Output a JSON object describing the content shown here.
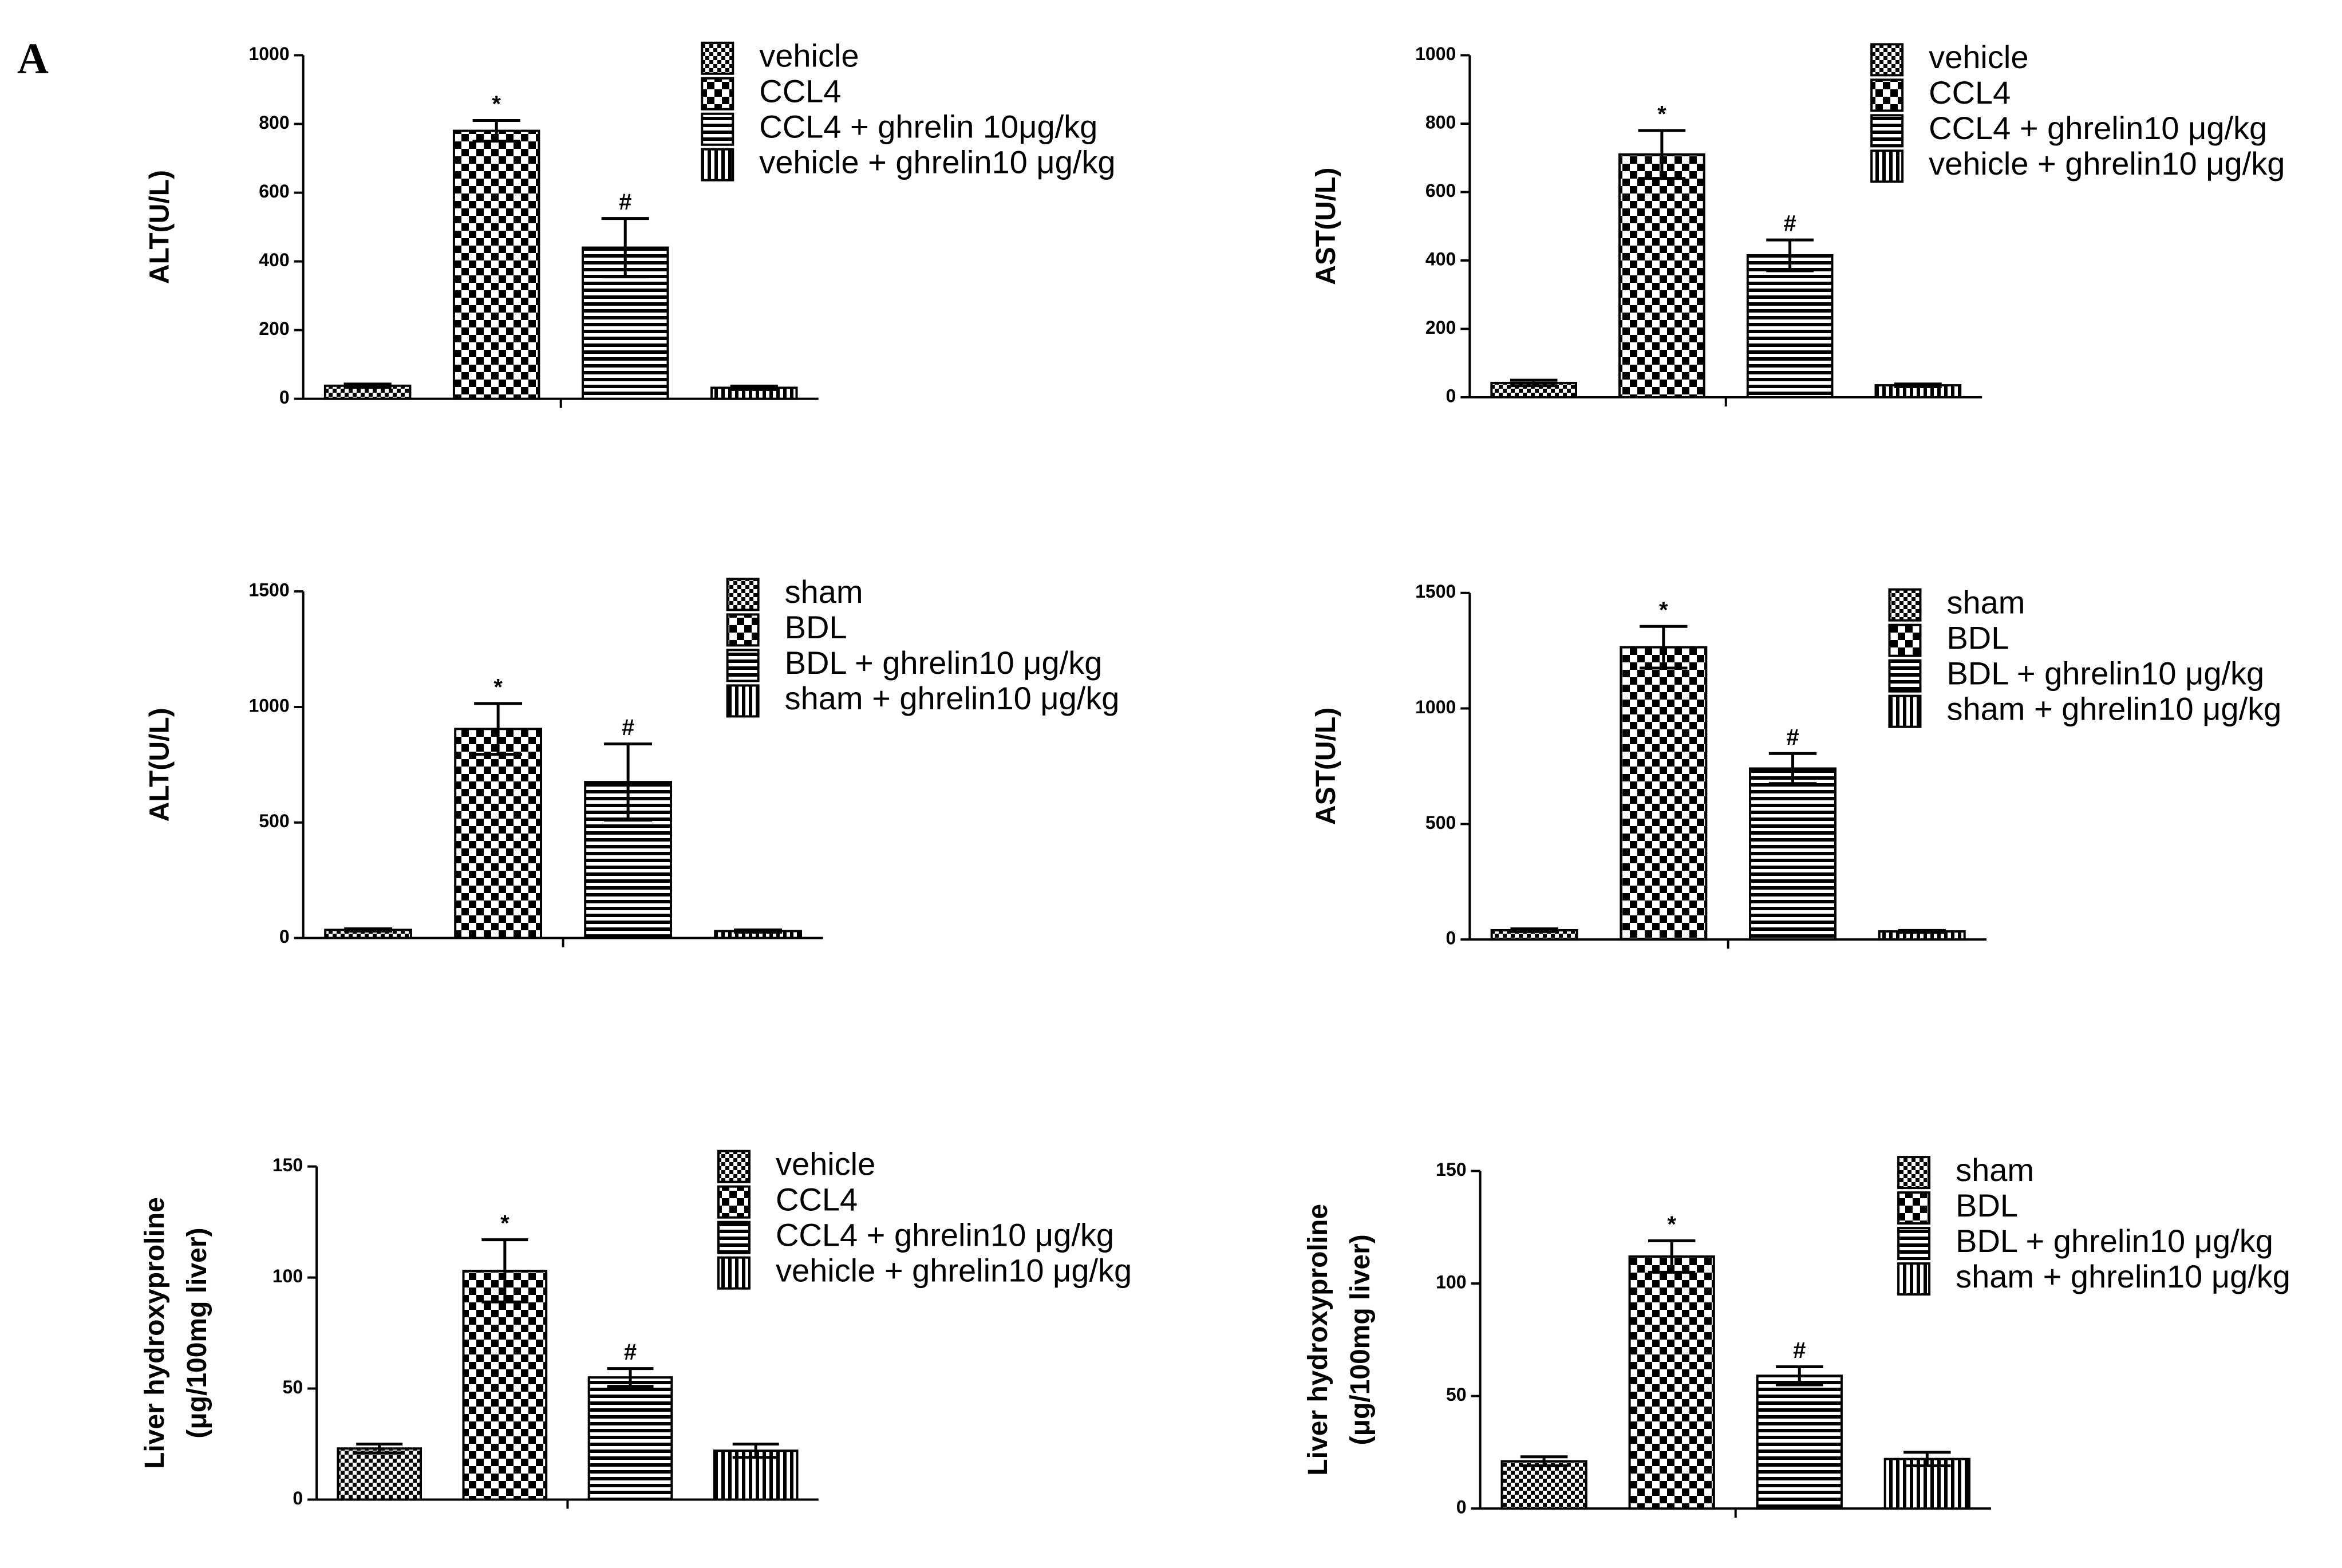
{
  "panel_label": "A",
  "chart_data": [
    {
      "type": "bar",
      "ylabel": "ALT(U/L)",
      "ylim": [
        0,
        1000
      ],
      "yticks": [
        0,
        200,
        400,
        600,
        800,
        1000
      ],
      "series": [
        {
          "name": "vehicle",
          "pattern": "fine-check",
          "values": [
            38
          ],
          "errors": [
            5
          ]
        },
        {
          "name": "CCL4",
          "pattern": "check",
          "values": [
            780
          ],
          "errors": [
            30
          ],
          "annotation": "*"
        },
        {
          "name": "CCL4 + ghrelin 10μg/kg",
          "pattern": "hstripe",
          "values": [
            440
          ],
          "errors": [
            85
          ],
          "annotation": "#"
        },
        {
          "name": "vehicle + ghrelin10 μg/kg",
          "pattern": "vstripe",
          "values": [
            32
          ],
          "errors": [
            5
          ]
        }
      ]
    },
    {
      "type": "bar",
      "ylabel": "AST(U/L)",
      "ylim": [
        0,
        1000
      ],
      "yticks": [
        0,
        200,
        400,
        600,
        800,
        1000
      ],
      "series": [
        {
          "name": "vehicle",
          "pattern": "fine-check",
          "values": [
            42
          ],
          "errors": [
            8
          ]
        },
        {
          "name": "CCL4",
          "pattern": "check",
          "values": [
            710
          ],
          "errors": [
            70
          ],
          "annotation": "*"
        },
        {
          "name": "CCL4 + ghrelin10 μg/kg",
          "pattern": "hstripe",
          "values": [
            415
          ],
          "errors": [
            45
          ],
          "annotation": "#"
        },
        {
          "name": "vehicle + ghrelin10 μg/kg",
          "pattern": "vstripe",
          "values": [
            35
          ],
          "errors": [
            4
          ]
        }
      ]
    },
    {
      "type": "bar",
      "ylabel": "ALT(U/L)",
      "ylim": [
        0,
        1500
      ],
      "yticks": [
        0,
        500,
        1000,
        1500
      ],
      "series": [
        {
          "name": "sham",
          "pattern": "fine-check",
          "values": [
            35
          ],
          "errors": [
            5
          ]
        },
        {
          "name": "BDL",
          "pattern": "check",
          "values": [
            905
          ],
          "errors": [
            110
          ],
          "annotation": "*"
        },
        {
          "name": "BDL + ghrelin10 μg/kg",
          "pattern": "hstripe",
          "values": [
            675
          ],
          "errors": [
            165
          ],
          "annotation": "#"
        },
        {
          "name": "sham + ghrelin10 μg/kg",
          "pattern": "vstripe",
          "values": [
            30
          ],
          "errors": [
            5
          ]
        }
      ]
    },
    {
      "type": "bar",
      "ylabel": "AST(U/L)",
      "ylim": [
        0,
        1500
      ],
      "yticks": [
        0,
        500,
        1000,
        1500
      ],
      "series": [
        {
          "name": "sham",
          "pattern": "fine-check",
          "values": [
            40
          ],
          "errors": [
            6
          ]
        },
        {
          "name": "BDL",
          "pattern": "check",
          "values": [
            1265
          ],
          "errors": [
            90
          ],
          "annotation": "*"
        },
        {
          "name": "BDL + ghrelin10 μg/kg",
          "pattern": "hstripe",
          "values": [
            740
          ],
          "errors": [
            65
          ],
          "annotation": "#"
        },
        {
          "name": "sham + ghrelin10 μg/kg",
          "pattern": "vstripe",
          "values": [
            35
          ],
          "errors": [
            4
          ]
        }
      ]
    },
    {
      "type": "bar",
      "ylabel": [
        "Liver hydroxyproline",
        "(μg/100mg liver)"
      ],
      "ylim": [
        0,
        150
      ],
      "yticks": [
        0,
        50,
        100,
        150
      ],
      "series": [
        {
          "name": "vehicle",
          "pattern": "fine-check",
          "values": [
            23
          ],
          "errors": [
            2
          ]
        },
        {
          "name": "CCL4",
          "pattern": "check",
          "values": [
            103
          ],
          "errors": [
            14
          ],
          "annotation": "*"
        },
        {
          "name": "CCL4 + ghrelin10 μg/kg",
          "pattern": "hstripe",
          "values": [
            55
          ],
          "errors": [
            4
          ],
          "annotation": "#"
        },
        {
          "name": "vehicle + ghrelin10 μg/kg",
          "pattern": "vstripe",
          "values": [
            22
          ],
          "errors": [
            3
          ]
        }
      ]
    },
    {
      "type": "bar",
      "ylabel": [
        "Liver hydroxyproline",
        "(μg/100mg liver)"
      ],
      "ylim": [
        0,
        150
      ],
      "yticks": [
        0,
        50,
        100,
        150
      ],
      "series": [
        {
          "name": "sham",
          "pattern": "fine-check",
          "values": [
            21
          ],
          "errors": [
            2
          ]
        },
        {
          "name": "BDL",
          "pattern": "check",
          "values": [
            112
          ],
          "errors": [
            7
          ],
          "annotation": "*"
        },
        {
          "name": "BDL + ghrelin10 μg/kg",
          "pattern": "hstripe",
          "values": [
            59
          ],
          "errors": [
            4
          ],
          "annotation": "#"
        },
        {
          "name": "sham + ghrelin10 μg/kg",
          "pattern": "vstripe",
          "values": [
            22
          ],
          "errors": [
            3
          ]
        }
      ]
    }
  ]
}
